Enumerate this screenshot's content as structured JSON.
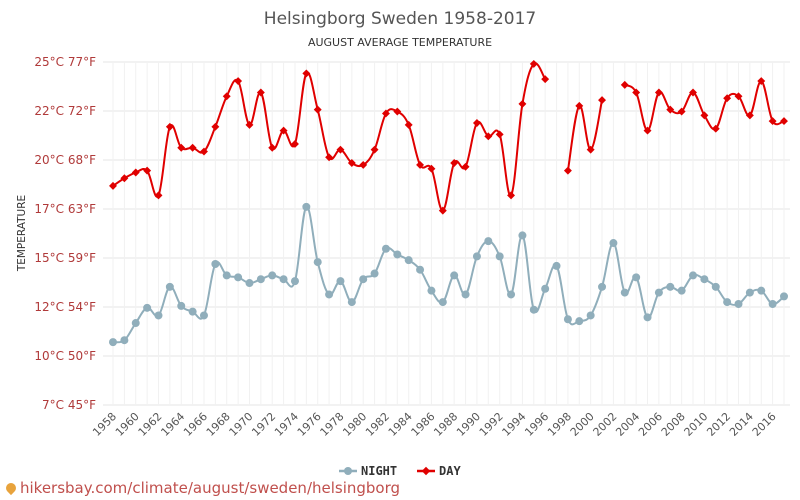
{
  "chart_data": {
    "type": "line",
    "title": "Helsingborg Sweden 1958-2017",
    "subtitle": "AUGUST AVERAGE TEMPERATURE",
    "ylabel": "TEMPERATURE",
    "y_ticks": [
      {
        "c": 7,
        "label": "7°C 45°F"
      },
      {
        "c": 10,
        "label": "10°C 50°F"
      },
      {
        "c": 12,
        "label": "12°C 54°F"
      },
      {
        "c": 15,
        "label": "15°C 59°F"
      },
      {
        "c": 17,
        "label": "17°C 63°F"
      },
      {
        "c": 20,
        "label": "20°C 68°F"
      },
      {
        "c": 22,
        "label": "22°C 72°F"
      },
      {
        "c": 25,
        "label": "25°C 77°F"
      }
    ],
    "ylim": [
      7,
      25
    ],
    "xlim": [
      1958,
      2017
    ],
    "x_tick_labels": [
      "1958",
      "1960",
      "1962",
      "1964",
      "1966",
      "1968",
      "1970",
      "1972",
      "1974",
      "1976",
      "1978",
      "1980",
      "1982",
      "1984",
      "1986",
      "1988",
      "1990",
      "1992",
      "1994",
      "1996",
      "1998",
      "2000",
      "2002",
      "2004",
      "2006",
      "2008",
      "2010",
      "2012",
      "2014",
      "2016"
    ],
    "grid": true,
    "legend_position": "bottom-center",
    "series": [
      {
        "name": "NIGHT",
        "color": "#90aebb",
        "marker": "circle",
        "points": [
          [
            1958,
            10.3
          ],
          [
            1959,
            10.4
          ],
          [
            1960,
            11.3
          ],
          [
            1961,
            12.1
          ],
          [
            1962,
            11.7
          ],
          [
            1963,
            13.2
          ],
          [
            1964,
            12.2
          ],
          [
            1965,
            11.9
          ],
          [
            1966,
            11.7
          ],
          [
            1967,
            14.4
          ],
          [
            1968,
            13.8
          ],
          [
            1969,
            13.7
          ],
          [
            1970,
            13.4
          ],
          [
            1971,
            13.6
          ],
          [
            1972,
            13.8
          ],
          [
            1973,
            13.6
          ],
          [
            1974,
            13.5
          ],
          [
            1975,
            17.4
          ],
          [
            1976,
            14.5
          ],
          [
            1977,
            12.8
          ],
          [
            1978,
            13.5
          ],
          [
            1979,
            12.4
          ],
          [
            1980,
            13.6
          ],
          [
            1981,
            13.9
          ],
          [
            1982,
            15.2
          ],
          [
            1983,
            14.9
          ],
          [
            1984,
            14.6
          ],
          [
            1985,
            14.1
          ],
          [
            1986,
            13.0
          ],
          [
            1987,
            12.4
          ],
          [
            1988,
            13.8
          ],
          [
            1989,
            12.8
          ],
          [
            1990,
            14.8
          ],
          [
            1991,
            15.6
          ],
          [
            1992,
            14.8
          ],
          [
            1993,
            12.8
          ],
          [
            1994,
            15.9
          ],
          [
            1995,
            12.0
          ],
          [
            1996,
            13.1
          ],
          [
            1997,
            14.3
          ],
          [
            1998,
            11.5
          ],
          [
            1999,
            11.4
          ],
          [
            2000,
            11.7
          ],
          [
            2001,
            13.2
          ],
          [
            2002,
            15.5
          ],
          [
            2003,
            12.9
          ],
          [
            2004,
            13.7
          ],
          [
            2005,
            11.6
          ],
          [
            2006,
            12.9
          ],
          [
            2007,
            13.2
          ],
          [
            2008,
            13.0
          ],
          [
            2009,
            13.8
          ],
          [
            2010,
            13.6
          ],
          [
            2011,
            13.2
          ],
          [
            2012,
            12.4
          ],
          [
            2013,
            12.3
          ],
          [
            2014,
            12.9
          ],
          [
            2015,
            13.0
          ],
          [
            2016,
            12.3
          ],
          [
            2017,
            12.7
          ]
        ]
      },
      {
        "name": "DAY",
        "color": "#e00000",
        "marker": "diamond",
        "points": [
          [
            1958,
            18.5
          ],
          [
            1959,
            18.9
          ],
          [
            1960,
            19.2
          ],
          [
            1961,
            19.3
          ],
          [
            1962,
            18.0
          ],
          [
            1963,
            21.6
          ],
          [
            1964,
            20.5
          ],
          [
            1965,
            20.5
          ],
          [
            1966,
            20.3
          ],
          [
            1967,
            21.6
          ],
          [
            1968,
            23.2
          ],
          [
            1969,
            24.0
          ],
          [
            1970,
            21.7
          ],
          [
            1971,
            23.4
          ],
          [
            1972,
            20.5
          ],
          [
            1973,
            21.4
          ],
          [
            1974,
            20.7
          ],
          [
            1975,
            24.4
          ],
          [
            1976,
            22.5
          ],
          [
            1977,
            20.0
          ],
          [
            1978,
            20.4
          ],
          [
            1979,
            19.7
          ],
          [
            1980,
            19.6
          ],
          [
            1981,
            20.4
          ],
          [
            1982,
            22.3
          ],
          [
            1983,
            22.4
          ],
          [
            1984,
            21.7
          ],
          [
            1985,
            19.6
          ],
          [
            1986,
            19.4
          ],
          [
            1987,
            17.2
          ],
          [
            1988,
            19.7
          ],
          [
            1989,
            19.5
          ],
          [
            1990,
            21.8
          ],
          [
            1991,
            21.1
          ],
          [
            1992,
            21.2
          ],
          [
            1993,
            18.0
          ],
          [
            1994,
            22.8
          ],
          [
            1995,
            24.9
          ],
          [
            1996,
            24.1
          ],
          [
            1997,
            null
          ],
          [
            1998,
            19.3
          ],
          [
            1999,
            22.7
          ],
          [
            2000,
            20.4
          ],
          [
            2001,
            23.0
          ],
          [
            2002,
            null
          ],
          [
            2003,
            23.8
          ],
          [
            2004,
            23.4
          ],
          [
            2005,
            21.4
          ],
          [
            2006,
            23.4
          ],
          [
            2007,
            22.5
          ],
          [
            2008,
            22.4
          ],
          [
            2009,
            23.4
          ],
          [
            2010,
            22.2
          ],
          [
            2011,
            21.5
          ],
          [
            2012,
            23.1
          ],
          [
            2013,
            23.2
          ],
          [
            2014,
            22.2
          ],
          [
            2015,
            24.0
          ],
          [
            2016,
            21.9
          ],
          [
            2017,
            21.9
          ]
        ]
      }
    ]
  },
  "footer": {
    "url_text": "hikersbay.com/climate/august/sweden/helsingborg"
  }
}
